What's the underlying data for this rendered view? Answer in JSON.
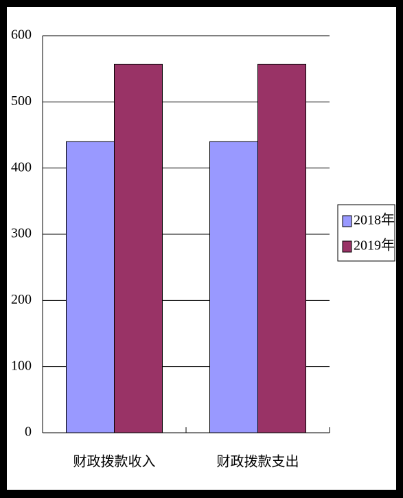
{
  "chart_data": {
    "type": "bar",
    "categories": [
      "财政拨款收入",
      "财政拨款支出"
    ],
    "series": [
      {
        "name": "2018年",
        "color": "#9999ff",
        "values": [
          440,
          440
        ]
      },
      {
        "name": "2019年",
        "color": "#993366",
        "values": [
          557,
          557
        ]
      }
    ],
    "ylim": [
      0,
      600
    ],
    "yticks": [
      0,
      100,
      200,
      300,
      400,
      500,
      600
    ],
    "grid": true,
    "legend": "right"
  }
}
